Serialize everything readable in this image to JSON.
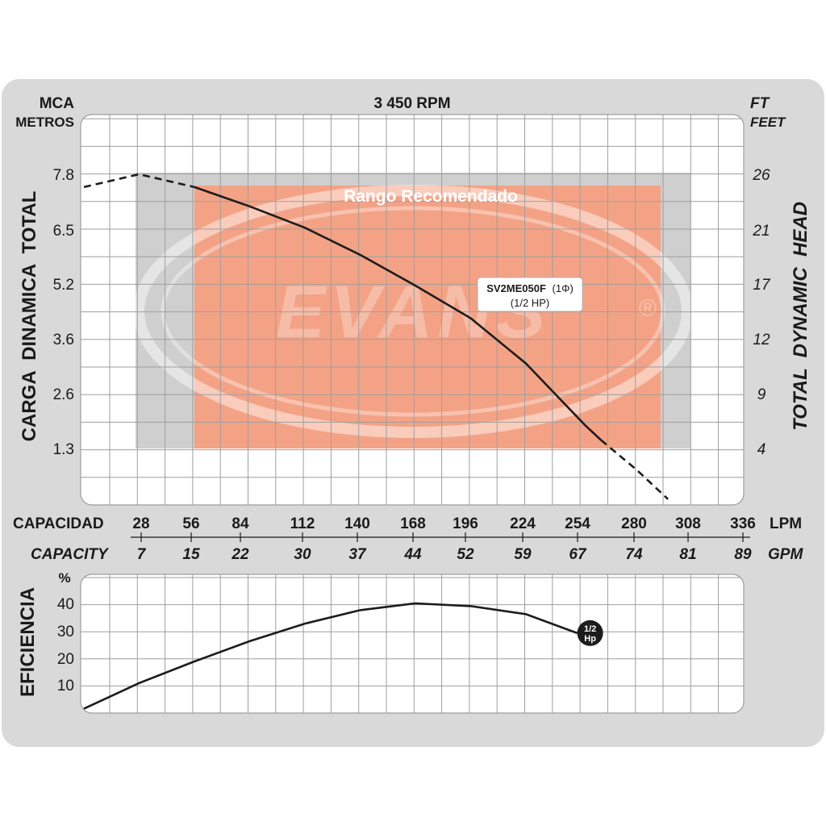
{
  "colors": {
    "frame": "#d9d9d9",
    "panel": "#ffffff",
    "grid": "#9e9e9e",
    "recommended_fill": "#f4a285",
    "band_gray": "#cfcfcf",
    "curve": "#1c1c1c",
    "text": "#1a1a1a",
    "watermark": "#d8d8d8"
  },
  "header": {
    "left_unit": "MCA",
    "left_unit_sub": "METROS",
    "speed": "3 450 RPM",
    "right_unit": "FT",
    "right_unit_sub": "FEET"
  },
  "watermark": {
    "text": "EVANS",
    "mark": "®"
  },
  "chart_data": [
    {
      "type": "line",
      "title": "3 450 RPM",
      "ylabel": "CARGA  DINAMICA  TOTAL",
      "ylabel_right": "TOTAL  DYNAMIC  HEAD",
      "xlabel": "CAPACIDAD",
      "xlabel_secondary": "CAPACITY",
      "x_unit": "LPM",
      "x_unit_secondary": "GPM",
      "y_unit": "MCA",
      "y_unit_right": "FT",
      "x_ticks": [
        "28",
        "56",
        "84",
        "112",
        "140",
        "168",
        "196",
        "224",
        "254",
        "280",
        "308",
        "336"
      ],
      "x_ticks_secondary": [
        "7",
        "15",
        "22",
        "30",
        "37",
        "44",
        "52",
        "59",
        "67",
        "74",
        "81",
        "89"
      ],
      "y_ticks": [
        "7.8",
        "6.5",
        "5.2",
        "3.6",
        "2.6",
        "1.3"
      ],
      "y_ticks_right": [
        "26",
        "21",
        "17",
        "12",
        "9",
        "4"
      ],
      "xlim": [
        0,
        336
      ],
      "ylim": [
        0,
        9.1
      ],
      "grid": true,
      "recommended_range": {
        "label": "Rango Recomendado",
        "x": [
          56,
          280
        ],
        "y": [
          1.3,
          7.5
        ]
      },
      "series": [
        {
          "name": "SV2ME050F",
          "name_suffix": "(1Φ)",
          "name_sub": "(1/2 HP)",
          "dashed_start": 56,
          "dashed_end": 262,
          "x": [
            0,
            28,
            56,
            84,
            112,
            140,
            168,
            196,
            224,
            254,
            262,
            280,
            296
          ],
          "y": [
            8.1,
            7.8,
            7.5,
            7.05,
            6.55,
            5.9,
            5.15,
            4.2,
            3.15,
            1.85,
            1.5,
            0.8,
            0.1
          ]
        }
      ]
    },
    {
      "type": "line",
      "ylabel": "EFICIENCIA",
      "y_unit": "%",
      "y_ticks": [
        "40",
        "30",
        "20",
        "10"
      ],
      "ylim": [
        0,
        50
      ],
      "xlim": [
        0,
        336
      ],
      "grid": true,
      "series": [
        {
          "marker_label": "1/2 Hp",
          "x": [
            0,
            28,
            56,
            84,
            112,
            140,
            168,
            196,
            224,
            250
          ],
          "y": [
            1,
            10.5,
            18.5,
            26,
            32.5,
            37.5,
            40,
            39,
            36,
            29
          ]
        }
      ]
    }
  ]
}
